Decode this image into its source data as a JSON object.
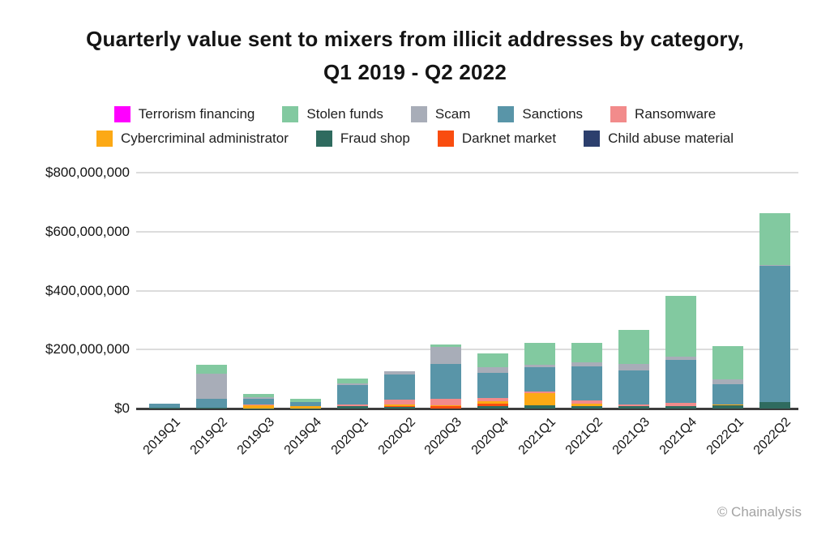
{
  "title": {
    "line1": "Quarterly value sent to mixers from illicit addresses by category,",
    "line2": "Q1 2019 - Q2 2022"
  },
  "watermark": "© Chainalysis",
  "legend": {
    "row1": [
      {
        "label": "Terrorism financing",
        "color": "#FF00FF"
      },
      {
        "label": "Stolen funds",
        "color": "#82C9A0"
      },
      {
        "label": "Scam",
        "color": "#A8ADB8"
      },
      {
        "label": "Sanctions",
        "color": "#5995A8"
      },
      {
        "label": "Ransomware",
        "color": "#F28B8B"
      }
    ],
    "row2": [
      {
        "label": "Cybercriminal administrator",
        "color": "#FCA915"
      },
      {
        "label": "Fraud shop",
        "color": "#2F6B5F"
      },
      {
        "label": "Darknet market",
        "color": "#F94D10"
      },
      {
        "label": "Child abuse material",
        "color": "#2C3F6D"
      }
    ]
  },
  "chart_data": {
    "type": "bar",
    "stacked": true,
    "title": "Quarterly value sent to mixers from illicit addresses by category, Q1 2019 - Q2 2022",
    "unit": "USD millions",
    "ylim": [
      0,
      800
    ],
    "grid": "horizontal",
    "legend_position": "top",
    "yticks": [
      {
        "v": 0,
        "label": "$0"
      },
      {
        "v": 200,
        "label": "$200,000,000"
      },
      {
        "v": 400,
        "label": "$400,000,000"
      },
      {
        "v": 600,
        "label": "$600,000,000"
      },
      {
        "v": 800,
        "label": "$800,000,000"
      }
    ],
    "categories": [
      "2019Q1",
      "2019Q2",
      "2019Q3",
      "2019Q4",
      "2020Q1",
      "2020Q2",
      "2020Q3",
      "2020Q4",
      "2021Q1",
      "2021Q2",
      "2021Q3",
      "2021Q4",
      "2022Q1",
      "2022Q2"
    ],
    "series": [
      {
        "name": "Child abuse material",
        "color": "#2C3F6D",
        "values": [
          0,
          0,
          0,
          0,
          0,
          0,
          0,
          0,
          0,
          0,
          0,
          0,
          0,
          0
        ]
      },
      {
        "name": "Terrorism financing",
        "color": "#FF00FF",
        "values": [
          0,
          0,
          0,
          0,
          0,
          0,
          0,
          0,
          0,
          0,
          0,
          0,
          0,
          0
        ]
      },
      {
        "name": "Fraud shop",
        "color": "#2F6B5F",
        "values": [
          2,
          4,
          1,
          1,
          7,
          6,
          0,
          9,
          12,
          7,
          8,
          9,
          10,
          21
        ]
      },
      {
        "name": "Darknet market",
        "color": "#F94D10",
        "values": [
          0,
          0,
          0,
          0,
          0,
          2,
          7,
          7,
          0,
          0,
          0,
          0,
          0,
          0
        ]
      },
      {
        "name": "Cybercriminal administrator",
        "color": "#FCA915",
        "values": [
          0,
          0,
          11,
          8,
          0,
          7,
          5,
          9,
          41,
          9,
          0,
          0,
          5,
          0
        ]
      },
      {
        "name": "Ransomware",
        "color": "#F28B8B",
        "values": [
          0,
          0,
          3,
          0,
          6,
          16,
          20,
          11,
          5,
          11,
          7,
          11,
          0,
          0
        ]
      },
      {
        "name": "Sanctions",
        "color": "#5995A8",
        "values": [
          14,
          30,
          19,
          13,
          67,
          84,
          119,
          86,
          83,
          115,
          113,
          145,
          68,
          463
        ]
      },
      {
        "name": "Scam",
        "color": "#A8ADB8",
        "values": [
          0,
          84,
          4,
          0,
          5,
          13,
          57,
          19,
          7,
          14,
          22,
          11,
          15,
          4
        ]
      },
      {
        "name": "Stolen funds",
        "color": "#82C9A0",
        "values": [
          0,
          30,
          12,
          11,
          16,
          0,
          9,
          45,
          76,
          67,
          118,
          207,
          114,
          174
        ]
      }
    ]
  }
}
